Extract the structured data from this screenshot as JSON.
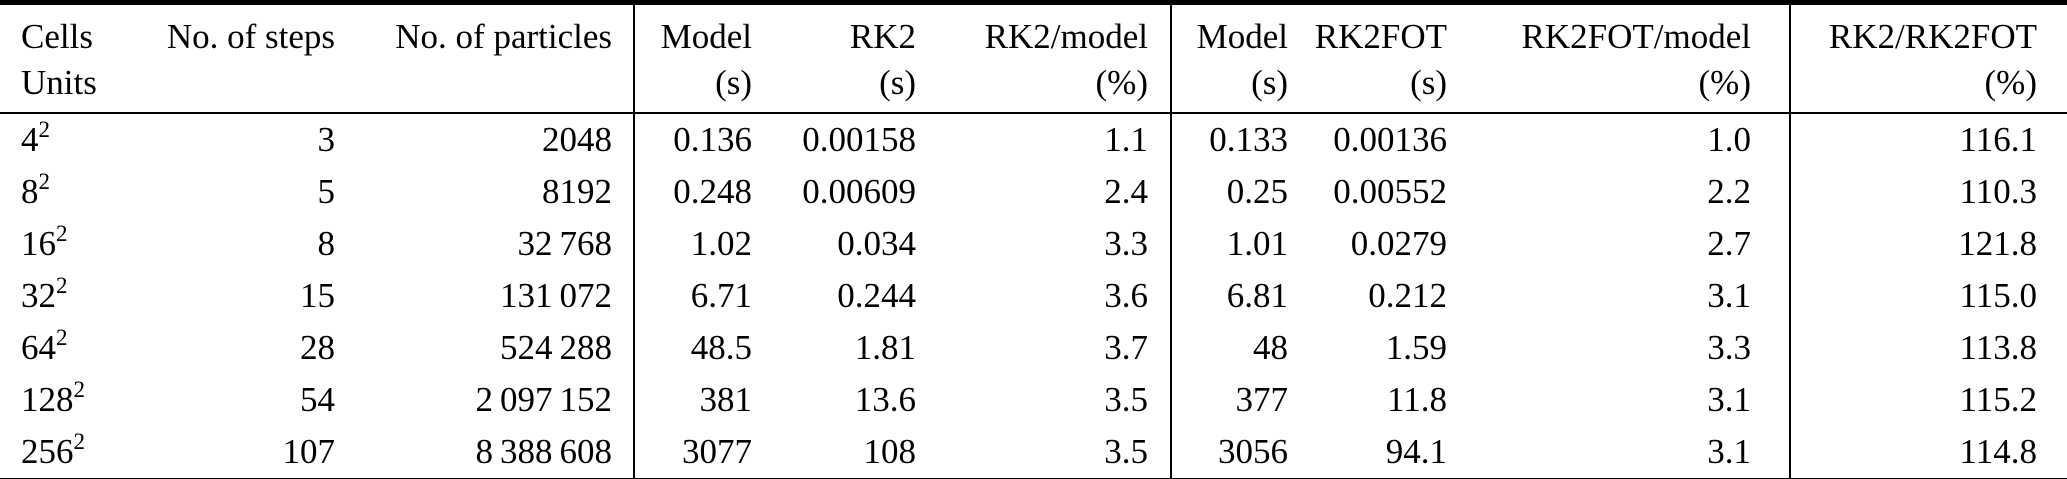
{
  "colors": {
    "text": "#000000",
    "background": "#ffffff",
    "rule": "#000000"
  },
  "table": {
    "columns": [
      {
        "id": "cells",
        "line1": "Cells",
        "line2": "Units"
      },
      {
        "id": "steps",
        "line1": "No. of steps",
        "line2": ""
      },
      {
        "id": "particles",
        "line1": "No. of particles",
        "line2": ""
      },
      {
        "id": "model_rk2",
        "line1": "Model",
        "line2": "(s)"
      },
      {
        "id": "rk2",
        "line1": "RK2",
        "line2": "(s)"
      },
      {
        "id": "rk2_over_model",
        "line1": "RK2/model",
        "line2": "(%)"
      },
      {
        "id": "model_rk2fot",
        "line1": "Model",
        "line2": "(s)"
      },
      {
        "id": "rk2fot",
        "line1": "RK2FOT",
        "line2": "(s)"
      },
      {
        "id": "rk2fot_over_model",
        "line1": "RK2FOT/model",
        "line2": "(%)"
      },
      {
        "id": "rk2_over_rk2fot",
        "line1": "RK2/RK2FOT",
        "line2": "(%)"
      }
    ],
    "rows": [
      {
        "cells_base": "4",
        "cells_exp": "2",
        "steps": "3",
        "particles": "2048",
        "model_rk2": "0.136",
        "rk2": "0.00158",
        "rk2_over_model": "1.1",
        "model_rk2fot": "0.133",
        "rk2fot": "0.00136",
        "rk2fot_over_model": "1.0",
        "rk2_over_rk2fot": "116.1"
      },
      {
        "cells_base": "8",
        "cells_exp": "2",
        "steps": "5",
        "particles": "8192",
        "model_rk2": "0.248",
        "rk2": "0.00609",
        "rk2_over_model": "2.4",
        "model_rk2fot": "0.25",
        "rk2fot": "0.00552",
        "rk2fot_over_model": "2.2",
        "rk2_over_rk2fot": "110.3"
      },
      {
        "cells_base": "16",
        "cells_exp": "2",
        "steps": "8",
        "particles": "32 768",
        "model_rk2": "1.02",
        "rk2": "0.034",
        "rk2_over_model": "3.3",
        "model_rk2fot": "1.01",
        "rk2fot": "0.0279",
        "rk2fot_over_model": "2.7",
        "rk2_over_rk2fot": "121.8"
      },
      {
        "cells_base": "32",
        "cells_exp": "2",
        "steps": "15",
        "particles": "131 072",
        "model_rk2": "6.71",
        "rk2": "0.244",
        "rk2_over_model": "3.6",
        "model_rk2fot": "6.81",
        "rk2fot": "0.212",
        "rk2fot_over_model": "3.1",
        "rk2_over_rk2fot": "115.0"
      },
      {
        "cells_base": "64",
        "cells_exp": "2",
        "steps": "28",
        "particles": "524 288",
        "model_rk2": "48.5",
        "rk2": "1.81",
        "rk2_over_model": "3.7",
        "model_rk2fot": "48",
        "rk2fot": "1.59",
        "rk2fot_over_model": "3.3",
        "rk2_over_rk2fot": "113.8"
      },
      {
        "cells_base": "128",
        "cells_exp": "2",
        "steps": "54",
        "particles": "2 097 152",
        "model_rk2": "381",
        "rk2": "13.6",
        "rk2_over_model": "3.5",
        "model_rk2fot": "377",
        "rk2fot": "11.8",
        "rk2fot_over_model": "3.1",
        "rk2_over_rk2fot": "115.2"
      },
      {
        "cells_base": "256",
        "cells_exp": "2",
        "steps": "107",
        "particles": "8 388 608",
        "model_rk2": "3077",
        "rk2": "108",
        "rk2_over_model": "3.5",
        "model_rk2fot": "3056",
        "rk2fot": "94.1",
        "rk2fot_over_model": "3.1",
        "rk2_over_rk2fot": "114.8"
      }
    ]
  }
}
